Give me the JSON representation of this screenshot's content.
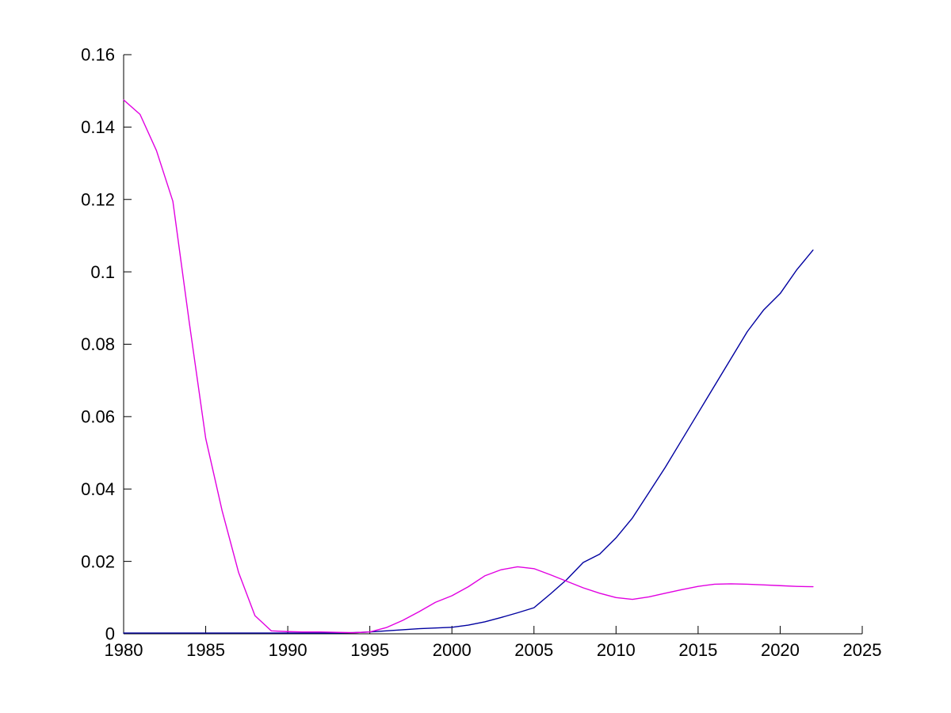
{
  "figure": {
    "background": "#ffffff",
    "axis_color": "#000000",
    "tick_label_color": "#000000"
  },
  "chart_data": {
    "type": "line",
    "title": "",
    "xlabel": "",
    "ylabel": "",
    "grid": false,
    "legend": "none",
    "xlim": [
      1980,
      2025
    ],
    "ylim": [
      0,
      0.16
    ],
    "x_ticks": [
      1980,
      1985,
      1990,
      1995,
      2000,
      2005,
      2010,
      2015,
      2020,
      2025
    ],
    "x_tick_labels": [
      "1980",
      "1985",
      "1990",
      "1995",
      "2000",
      "2005",
      "2010",
      "2015",
      "2020",
      "2025"
    ],
    "y_ticks": [
      0,
      0.02,
      0.04,
      0.06,
      0.08,
      0.1,
      0.12,
      0.14,
      0.16
    ],
    "y_tick_labels": [
      "0",
      "0.02",
      "0.04",
      "0.06",
      "0.08",
      "0.1",
      "0.12",
      "0.14",
      "0.16"
    ],
    "x": [
      1980,
      1981,
      1982,
      1983,
      1984,
      1985,
      1986,
      1987,
      1988,
      1989,
      1990,
      1991,
      1992,
      1993,
      1994,
      1995,
      1996,
      1997,
      1998,
      1999,
      2000,
      2001,
      2002,
      2003,
      2004,
      2005,
      2006,
      2007,
      2008,
      2009,
      2010,
      2011,
      2012,
      2013,
      2014,
      2015,
      2016,
      2017,
      2018,
      2019,
      2020,
      2021,
      2022
    ],
    "series": [
      {
        "name": "blue-series",
        "color": "#0000A0",
        "values": [
          0.0002,
          0.0002,
          0.0002,
          0.0002,
          0.0002,
          0.0002,
          0.0002,
          0.0002,
          0.0002,
          0.0002,
          0.0002,
          0.0002,
          0.0002,
          0.0002,
          0.0003,
          0.0005,
          0.0008,
          0.0011,
          0.0014,
          0.0016,
          0.0018,
          0.0024,
          0.0033,
          0.0045,
          0.0058,
          0.0072,
          0.011,
          0.015,
          0.0197,
          0.022,
          0.0265,
          0.032,
          0.039,
          0.046,
          0.0535,
          0.061,
          0.0685,
          0.076,
          0.0835,
          0.0895,
          0.094,
          0.1005,
          0.106
        ]
      },
      {
        "name": "magenta-series",
        "color": "#E100E1",
        "values": [
          0.1475,
          0.1435,
          0.1335,
          0.1195,
          0.086,
          0.054,
          0.034,
          0.017,
          0.005,
          0.0008,
          0.0006,
          0.0005,
          0.0005,
          0.0004,
          0.0003,
          0.0005,
          0.0017,
          0.0037,
          0.0061,
          0.0087,
          0.0105,
          0.013,
          0.016,
          0.0177,
          0.0185,
          0.018,
          0.0163,
          0.0145,
          0.0127,
          0.0112,
          0.01,
          0.0095,
          0.0102,
          0.0112,
          0.0122,
          0.0131,
          0.0137,
          0.0138,
          0.0137,
          0.0135,
          0.0133,
          0.0131,
          0.013
        ]
      }
    ]
  }
}
